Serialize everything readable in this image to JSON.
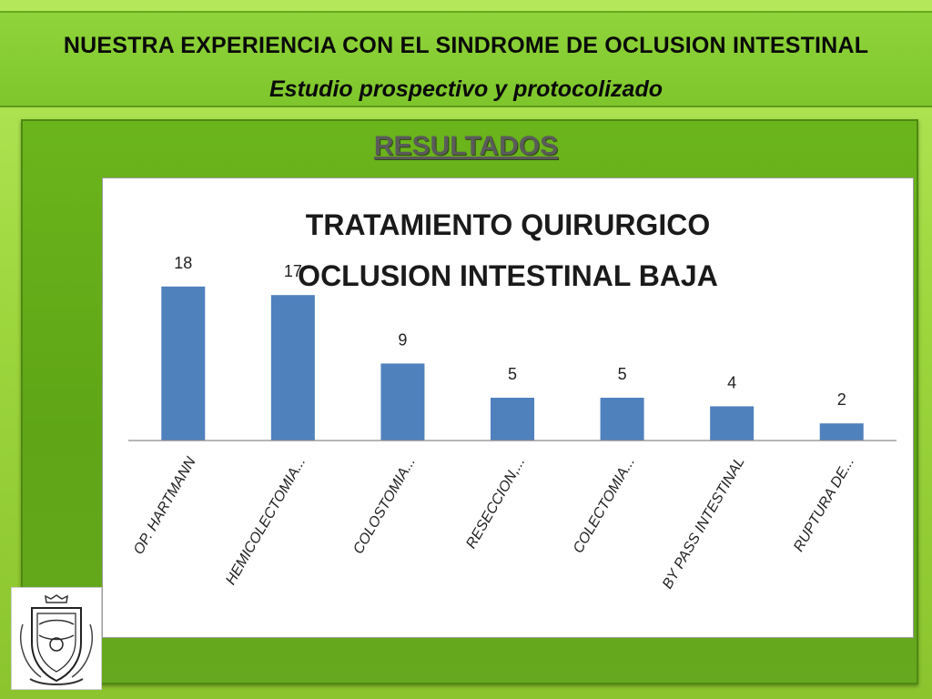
{
  "slide": {
    "title": "NUESTRA EXPERIENCIA CON EL SINDROME DE OCLUSION INTESTINAL",
    "subtitle": "Estudio prospectivo y protocolizado",
    "section_heading": "RESULTADOS"
  },
  "logo": {
    "icon": "university-crest-icon"
  },
  "colors": {
    "bar": "#4f81bd",
    "header_band": "#8fd43a",
    "panel": "#63ad18",
    "heading_text": "#5b5b5b"
  },
  "chart_data": {
    "type": "bar",
    "title_lines": [
      "TRATAMIENTO QUIRURGICO",
      "OCLUSION INTESTINAL BAJA"
    ],
    "categories": [
      "OP. HARTMANN",
      "HEMICOLECTOMIA...",
      "COLOSTOMIA...",
      "RESECCION,...",
      "COLECTOMIA...",
      "BY PASS INTESTINAL",
      "RUPTURA DE..."
    ],
    "values": [
      18,
      17,
      9,
      5,
      5,
      4,
      2
    ],
    "data_labels": [
      "18",
      "17",
      "9",
      "5",
      "5",
      "4",
      "2"
    ],
    "ylim": [
      0,
      20
    ],
    "grid": false,
    "legend": "none",
    "category_label_rotation": -60
  }
}
